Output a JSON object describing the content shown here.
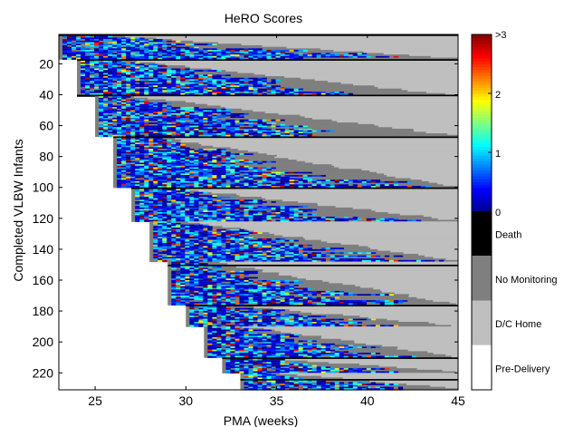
{
  "chart_data": {
    "type": "heatmap",
    "title": "HeRO Scores",
    "xlabel": "PMA (weeks)",
    "ylabel": "Completed VLBW Infants",
    "xlim": [
      23,
      45
    ],
    "ylim": [
      231,
      1
    ],
    "x_ticks": [
      25,
      30,
      35,
      40,
      45
    ],
    "y_ticks": [
      20,
      40,
      60,
      80,
      100,
      120,
      140,
      160,
      180,
      200,
      220
    ],
    "colorbar": {
      "continuous": {
        "ticks": [
          {
            "value": 0,
            "label": "0"
          },
          {
            "value": 1,
            "label": "1"
          },
          {
            "value": 2,
            "label": "2"
          },
          {
            "value": 3,
            "label": ">3"
          }
        ],
        "colormap": [
          "#00008f",
          "#0000ff",
          "#0080ff",
          "#00ffff",
          "#80ff80",
          "#ffff00",
          "#ff8000",
          "#ff0000",
          "#800000"
        ]
      },
      "categories": [
        {
          "label": "Death",
          "color": "#000000"
        },
        {
          "label": "No Monitoring",
          "color": "#7f7f7f"
        },
        {
          "label": "D/C Home",
          "color": "#bfbfbf"
        },
        {
          "label": "Pre-Delivery",
          "color": "#ffffff"
        }
      ]
    },
    "cohorts": [
      {
        "birth_pma": 23,
        "first_infant": 1,
        "last_infant": 17
      },
      {
        "birth_pma": 24,
        "first_infant": 17,
        "last_infant": 41
      },
      {
        "birth_pma": 25,
        "first_infant": 41,
        "last_infant": 67
      },
      {
        "birth_pma": 26,
        "first_infant": 67,
        "last_infant": 100
      },
      {
        "birth_pma": 27,
        "first_infant": 100,
        "last_infant": 122
      },
      {
        "birth_pma": 28,
        "first_infant": 122,
        "last_infant": 148
      },
      {
        "birth_pma": 29,
        "first_infant": 148,
        "last_infant": 176
      },
      {
        "birth_pma": 30,
        "first_infant": 176,
        "last_infant": 190
      },
      {
        "birth_pma": 31,
        "first_infant": 190,
        "last_infant": 210
      },
      {
        "birth_pma": 32,
        "first_infant": 210,
        "last_infant": 220
      },
      {
        "birth_pma": 33,
        "first_infant": 220,
        "last_infant": 231
      }
    ],
    "death_rows": [
      1,
      17,
      40,
      67,
      100,
      150,
      176,
      210,
      224
    ],
    "grid": false,
    "legend": "colorbar-right"
  }
}
